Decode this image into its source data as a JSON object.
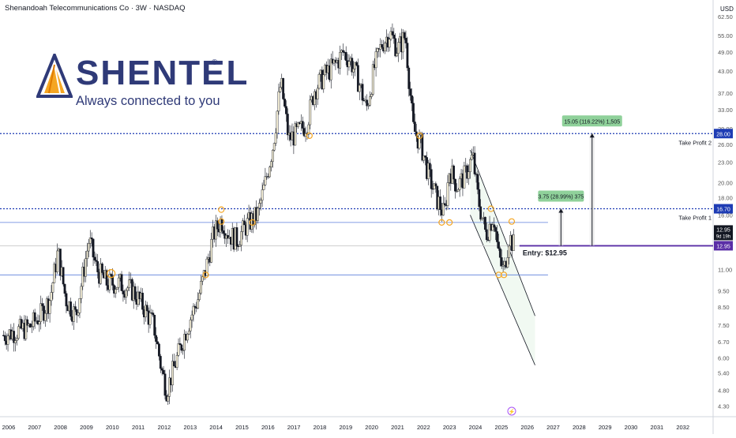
{
  "header": {
    "title": "Shenandoah Telecommunications Co · 3W · NASDAQ",
    "currency": "USD"
  },
  "logo": {
    "name": "SHENTEL",
    "registered": "®",
    "tagline": "Always connected to you",
    "color": "#2f3a78",
    "accent": "#f5a623"
  },
  "chart_data": {
    "type": "candlestick",
    "y_scale": "log",
    "ylim": [
      4.0,
      65.0
    ],
    "x_range": [
      "2005-09",
      "2033-03"
    ],
    "x_ticks": [
      "2006",
      "2007",
      "2008",
      "2009",
      "2010",
      "2011",
      "2012",
      "2013",
      "2014",
      "2015",
      "2016",
      "2017",
      "2018",
      "2019",
      "2020",
      "2021",
      "2022",
      "2023",
      "2024",
      "2025",
      "2026",
      "2027",
      "2028",
      "2029",
      "2030",
      "2031",
      "2032"
    ],
    "y_ticks": [
      "62.50",
      "55.00",
      "49.00",
      "43.00",
      "37.00",
      "33.00",
      "29.00",
      "26.00",
      "23.00",
      "20.00",
      "18.00",
      "16.00",
      "14.00",
      "11.00",
      "9.50",
      "8.50",
      "7.50",
      "6.70",
      "6.00",
      "5.40",
      "4.80",
      "4.30"
    ],
    "price_path": [
      [
        2005.8,
        7.0
      ],
      [
        2006.3,
        7.2
      ],
      [
        2006.8,
        7.4
      ],
      [
        2007.2,
        8.0
      ],
      [
        2007.6,
        9.0
      ],
      [
        2007.9,
        12.5
      ],
      [
        2008.2,
        9.0
      ],
      [
        2008.6,
        8.0
      ],
      [
        2008.9,
        11.0
      ],
      [
        2009.1,
        13.5
      ],
      [
        2009.4,
        11.0
      ],
      [
        2009.8,
        10.0
      ],
      [
        2010.3,
        10.0
      ],
      [
        2010.8,
        9.5
      ],
      [
        2011.2,
        8.5
      ],
      [
        2011.6,
        7.5
      ],
      [
        2011.9,
        5.5
      ],
      [
        2012.1,
        4.8
      ],
      [
        2012.5,
        6.0
      ],
      [
        2012.9,
        7.5
      ],
      [
        2013.3,
        9.0
      ],
      [
        2013.6,
        11.0
      ],
      [
        2013.9,
        14.0
      ],
      [
        2014.2,
        15.5
      ],
      [
        2014.5,
        14.0
      ],
      [
        2014.8,
        13.5
      ],
      [
        2015.2,
        15.0
      ],
      [
        2015.6,
        16.0
      ],
      [
        2015.9,
        20.0
      ],
      [
        2016.2,
        26.0
      ],
      [
        2016.5,
        40.0
      ],
      [
        2016.8,
        27.0
      ],
      [
        2017.1,
        28.0
      ],
      [
        2017.5,
        30.0
      ],
      [
        2017.8,
        38.0
      ],
      [
        2018.2,
        42.0
      ],
      [
        2018.6,
        45.0
      ],
      [
        2018.9,
        49.0
      ],
      [
        2019.2,
        46.0
      ],
      [
        2019.5,
        40.0
      ],
      [
        2019.8,
        33.0
      ],
      [
        2020.1,
        44.0
      ],
      [
        2020.4,
        52.0
      ],
      [
        2020.7,
        56.0
      ],
      [
        2021.0,
        50.0
      ],
      [
        2021.3,
        55.0
      ],
      [
        2021.6,
        29.0
      ],
      [
        2021.9,
        26.0
      ],
      [
        2022.2,
        21.0
      ],
      [
        2022.5,
        18.0
      ],
      [
        2022.8,
        16.0
      ],
      [
        2023.0,
        22.0
      ],
      [
        2023.3,
        19.5
      ],
      [
        2023.6,
        21.0
      ],
      [
        2023.9,
        24.0
      ],
      [
        2024.1,
        18.0
      ],
      [
        2024.4,
        14.0
      ],
      [
        2024.7,
        16.0
      ],
      [
        2024.9,
        12.0
      ],
      [
        2025.1,
        10.8
      ],
      [
        2025.3,
        13.8
      ],
      [
        2025.5,
        12.95
      ]
    ],
    "horizontal_levels": [
      {
        "price": 28.0,
        "style": "dotted",
        "color": "#1e3cb4",
        "label": "Take Profit 2",
        "axis_label": "28.00"
      },
      {
        "price": 16.7,
        "style": "dotted",
        "color": "#1e3cb4",
        "label": "Take Profit 1",
        "axis_label": "16.70"
      },
      {
        "price": 15.2,
        "style": "solid",
        "color": "#5b7fdb",
        "label": ""
      },
      {
        "price": 10.6,
        "style": "solid",
        "color": "#5b7fdb",
        "label": ""
      },
      {
        "price": 12.95,
        "style": "solid",
        "color": "#5a2ea6",
        "label": "Entry: $12.95",
        "axis_label": "12.95"
      }
    ],
    "price_badge": {
      "price": "12.95",
      "countdown": "9d 19h"
    },
    "targets": [
      {
        "label": "3.75 (28.99%) 375",
        "from_price": 12.95,
        "to_price": 16.7,
        "x": 2027.3
      },
      {
        "label": "15.05 (116.22%) 1,505",
        "from_price": 12.95,
        "to_price": 28.0,
        "x": 2028.5
      }
    ],
    "channel": {
      "upper": [
        [
          2023.8,
          25.0
        ],
        [
          2026.3,
          8.0
        ]
      ],
      "lower": [
        [
          2023.8,
          16.0
        ],
        [
          2026.3,
          5.7
        ]
      ]
    },
    "markers": [
      [
        2009.95,
        10.7
      ],
      [
        2013.6,
        10.6
      ],
      [
        2014.2,
        16.6
      ],
      [
        2014.2,
        15.3
      ],
      [
        2015.4,
        15.2
      ],
      [
        2017.6,
        27.6
      ],
      [
        2021.85,
        27.6
      ],
      [
        2022.7,
        15.2
      ],
      [
        2023.0,
        15.2
      ],
      [
        2024.6,
        16.7
      ],
      [
        2024.9,
        10.6
      ],
      [
        2025.1,
        10.6
      ],
      [
        2025.4,
        15.3
      ]
    ],
    "colors": {
      "up": "#131722",
      "down": "#131722",
      "body_up": "#f0ead2",
      "body_down": "#131722",
      "marker": "#f5a623"
    }
  }
}
